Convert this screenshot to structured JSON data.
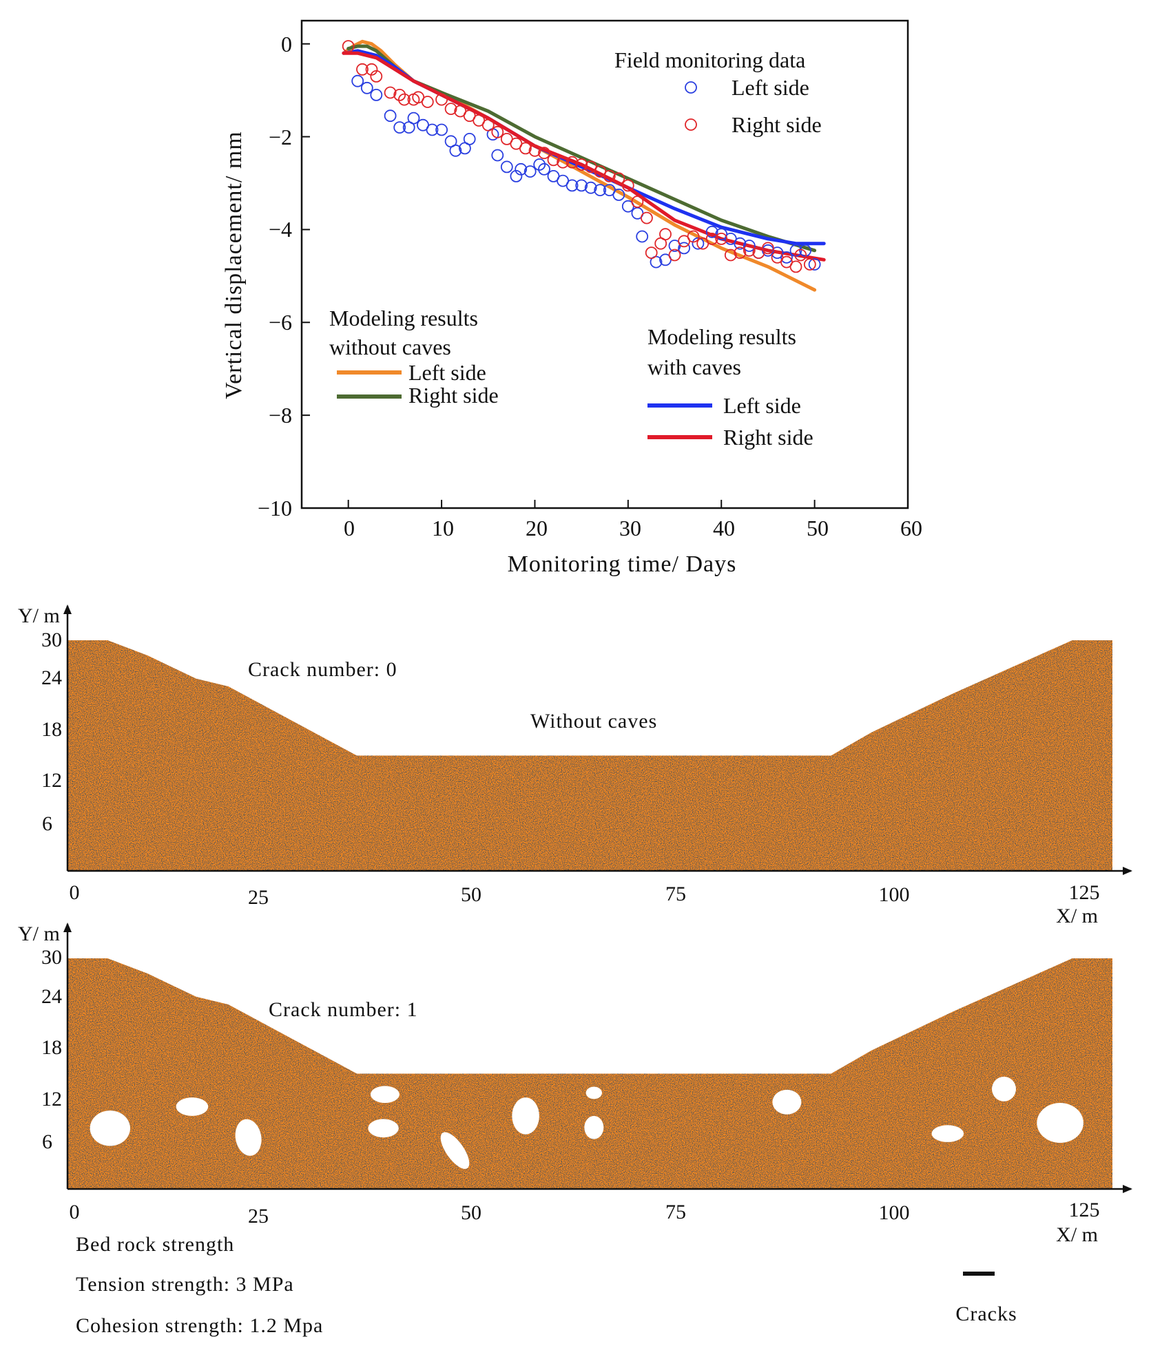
{
  "chart_data": [
    {
      "type": "line",
      "title": "",
      "xlabel": "Monitoring time/ Days",
      "ylabel": "Vertical displacement/ mm",
      "xlim": [
        -5,
        60
      ],
      "ylim": [
        -10,
        0.5
      ],
      "x_ticks": [
        "0",
        "10",
        "20",
        "30",
        "40",
        "50",
        "60"
      ],
      "y_ticks": [
        "0",
        "−2",
        "−4",
        "−6",
        "−8",
        "−10"
      ],
      "grid": false,
      "legend_groups": [
        {
          "title": "Field monitoring data",
          "entries": [
            "Left side",
            "Right side"
          ]
        },
        {
          "title_lines": [
            "Modeling results",
            "without caves"
          ],
          "entries": [
            "Left side",
            "Right side"
          ]
        },
        {
          "title_lines": [
            "Modeling results",
            "with caves"
          ],
          "entries": [
            "Left side",
            "Right side"
          ]
        }
      ],
      "series": [
        {
          "name": "Field monitoring data - Left side",
          "kind": "scatter",
          "color": "#2a3fe0",
          "points": [
            [
              1,
              -0.8
            ],
            [
              2,
              -0.95
            ],
            [
              3,
              -1.1
            ],
            [
              4.5,
              -1.55
            ],
            [
              5.5,
              -1.8
            ],
            [
              6.5,
              -1.8
            ],
            [
              7,
              -1.6
            ],
            [
              8,
              -1.75
            ],
            [
              9,
              -1.85
            ],
            [
              10,
              -1.85
            ],
            [
              11,
              -2.1
            ],
            [
              11.5,
              -2.3
            ],
            [
              12.5,
              -2.25
            ],
            [
              13,
              -2.05
            ],
            [
              15.5,
              -1.95
            ],
            [
              16,
              -2.4
            ],
            [
              17,
              -2.65
            ],
            [
              18,
              -2.85
            ],
            [
              18.5,
              -2.7
            ],
            [
              19.5,
              -2.75
            ],
            [
              20.5,
              -2.6
            ],
            [
              21,
              -2.7
            ],
            [
              22,
              -2.85
            ],
            [
              23,
              -2.95
            ],
            [
              24,
              -3.05
            ],
            [
              25,
              -3.05
            ],
            [
              26,
              -3.1
            ],
            [
              27,
              -3.15
            ],
            [
              28,
              -3.15
            ],
            [
              29,
              -3.25
            ],
            [
              30,
              -3.5
            ],
            [
              31,
              -3.65
            ],
            [
              31.5,
              -4.15
            ],
            [
              33,
              -4.7
            ],
            [
              34,
              -4.65
            ],
            [
              35,
              -4.35
            ],
            [
              36,
              -4.4
            ],
            [
              37.5,
              -4.3
            ],
            [
              39,
              -4.05
            ],
            [
              40,
              -4.1
            ],
            [
              41,
              -4.2
            ],
            [
              42,
              -4.3
            ],
            [
              43,
              -4.35
            ],
            [
              44,
              -4.5
            ],
            [
              45,
              -4.45
            ],
            [
              46,
              -4.5
            ],
            [
              47,
              -4.6
            ],
            [
              48,
              -4.45
            ],
            [
              49,
              -4.45
            ],
            [
              50,
              -4.75
            ]
          ]
        },
        {
          "name": "Field monitoring data - Right side",
          "kind": "scatter",
          "color": "#e0262a",
          "points": [
            [
              0,
              -0.05
            ],
            [
              1.5,
              -0.55
            ],
            [
              2.5,
              -0.55
            ],
            [
              3,
              -0.7
            ],
            [
              4.5,
              -1.05
            ],
            [
              5.5,
              -1.1
            ],
            [
              6,
              -1.2
            ],
            [
              7,
              -1.2
            ],
            [
              7.5,
              -1.15
            ],
            [
              8.5,
              -1.25
            ],
            [
              10,
              -1.2
            ],
            [
              11,
              -1.4
            ],
            [
              12,
              -1.45
            ],
            [
              13,
              -1.55
            ],
            [
              14,
              -1.65
            ],
            [
              15,
              -1.75
            ],
            [
              16,
              -1.9
            ],
            [
              17,
              -2.05
            ],
            [
              18,
              -2.15
            ],
            [
              19,
              -2.25
            ],
            [
              20,
              -2.3
            ],
            [
              21,
              -2.35
            ],
            [
              22,
              -2.5
            ],
            [
              23,
              -2.55
            ],
            [
              24,
              -2.55
            ],
            [
              25,
              -2.6
            ],
            [
              26,
              -2.65
            ],
            [
              27,
              -2.75
            ],
            [
              28,
              -2.85
            ],
            [
              29,
              -2.9
            ],
            [
              30,
              -3.05
            ],
            [
              31,
              -3.4
            ],
            [
              32,
              -3.75
            ],
            [
              32.5,
              -4.5
            ],
            [
              33.5,
              -4.3
            ],
            [
              34,
              -4.1
            ],
            [
              35,
              -4.55
            ],
            [
              36,
              -4.25
            ],
            [
              37,
              -4.15
            ],
            [
              38,
              -4.3
            ],
            [
              39,
              -4.2
            ],
            [
              40,
              -4.2
            ],
            [
              41,
              -4.55
            ],
            [
              42,
              -4.5
            ],
            [
              43,
              -4.45
            ],
            [
              44,
              -4.5
            ],
            [
              45,
              -4.4
            ],
            [
              46,
              -4.6
            ],
            [
              47,
              -4.7
            ],
            [
              48,
              -4.8
            ],
            [
              48.5,
              -4.55
            ],
            [
              49.5,
              -4.75
            ]
          ]
        },
        {
          "name": "Modeling results without caves - Left side",
          "kind": "line",
          "color": "#f0892a",
          "points": [
            [
              -0.5,
              -0.2
            ],
            [
              0.5,
              -0.05
            ],
            [
              1.5,
              0.05
            ],
            [
              2.5,
              0
            ],
            [
              3.5,
              -0.15
            ],
            [
              5,
              -0.45
            ],
            [
              7,
              -0.8
            ],
            [
              10,
              -1.05
            ],
            [
              15,
              -1.6
            ],
            [
              20,
              -2.2
            ],
            [
              25,
              -2.75
            ],
            [
              30,
              -3.3
            ],
            [
              35,
              -3.9
            ],
            [
              40,
              -4.4
            ],
            [
              45,
              -4.8
            ],
            [
              50,
              -5.3
            ]
          ]
        },
        {
          "name": "Modeling results without caves - Right side",
          "kind": "line",
          "color": "#4d6b32",
          "points": [
            [
              0,
              -0.1
            ],
            [
              1,
              -0.05
            ],
            [
              2,
              -0.05
            ],
            [
              3,
              -0.15
            ],
            [
              5,
              -0.5
            ],
            [
              7,
              -0.8
            ],
            [
              10,
              -1.05
            ],
            [
              15,
              -1.45
            ],
            [
              20,
              -2
            ],
            [
              25,
              -2.45
            ],
            [
              30,
              -2.9
            ],
            [
              35,
              -3.35
            ],
            [
              40,
              -3.8
            ],
            [
              45,
              -4.15
            ],
            [
              50,
              -4.45
            ]
          ]
        },
        {
          "name": "Modeling results with caves - Left side",
          "kind": "line",
          "color": "#1e32f0",
          "points": [
            [
              -0.5,
              -0.2
            ],
            [
              1,
              -0.15
            ],
            [
              3,
              -0.25
            ],
            [
              5,
              -0.5
            ],
            [
              7,
              -0.8
            ],
            [
              10,
              -1.1
            ],
            [
              15,
              -1.6
            ],
            [
              20,
              -2.2
            ],
            [
              25,
              -2.65
            ],
            [
              30,
              -3.1
            ],
            [
              35,
              -3.55
            ],
            [
              40,
              -3.95
            ],
            [
              45,
              -4.2
            ],
            [
              48,
              -4.3
            ],
            [
              51,
              -4.3
            ]
          ]
        },
        {
          "name": "Modeling results with caves - Right side",
          "kind": "line",
          "color": "#e01a2a",
          "points": [
            [
              -0.5,
              -0.2
            ],
            [
              1,
              -0.2
            ],
            [
              3,
              -0.3
            ],
            [
              5,
              -0.55
            ],
            [
              7,
              -0.8
            ],
            [
              10,
              -1.1
            ],
            [
              15,
              -1.6
            ],
            [
              20,
              -2.2
            ],
            [
              25,
              -2.6
            ],
            [
              30,
              -3.1
            ],
            [
              35,
              -3.8
            ],
            [
              40,
              -4.2
            ],
            [
              45,
              -4.45
            ],
            [
              51,
              -4.65
            ]
          ]
        }
      ]
    },
    {
      "type": "profile",
      "title": "Without caves",
      "annotation": "Crack number: 0",
      "xlabel": "X/ m",
      "ylabel": "Y/ m",
      "xlim": [
        0,
        130
      ],
      "ylim": [
        0,
        30
      ],
      "x_ticks": [
        "0",
        "25",
        "50",
        "75",
        "100",
        "125"
      ],
      "y_ticks": [
        "30",
        "24",
        "18",
        "12",
        "6"
      ],
      "surface": [
        [
          0,
          30
        ],
        [
          5,
          30
        ],
        [
          10,
          28
        ],
        [
          16,
          25
        ],
        [
          20,
          24
        ],
        [
          36,
          15
        ],
        [
          50,
          15
        ],
        [
          75,
          15
        ],
        [
          95,
          15
        ],
        [
          100,
          18
        ],
        [
          110,
          23
        ],
        [
          125,
          30
        ],
        [
          130,
          30
        ]
      ],
      "material_color": "#f4891f",
      "caves": []
    },
    {
      "type": "profile",
      "title": "",
      "annotation": "Crack number: 1",
      "xlabel": "X/ m",
      "ylabel": "Y/ m",
      "xlim": [
        0,
        130
      ],
      "ylim": [
        0,
        30
      ],
      "x_ticks": [
        "0",
        "25",
        "50",
        "75",
        "100",
        "125"
      ],
      "y_ticks": [
        "30",
        "24",
        "18",
        "12",
        "6"
      ],
      "surface": [
        [
          0,
          30
        ],
        [
          5,
          30
        ],
        [
          10,
          28
        ],
        [
          16,
          25
        ],
        [
          20,
          24
        ],
        [
          36,
          15
        ],
        [
          50,
          15
        ],
        [
          75,
          15
        ],
        [
          95,
          15
        ],
        [
          100,
          18
        ],
        [
          110,
          23
        ],
        [
          125,
          30
        ],
        [
          130,
          30
        ]
      ],
      "material_color": "#f4891f",
      "caves": [
        {
          "cx": 5.3,
          "cy": 7.9,
          "rx": 2.5,
          "ry": 2.3,
          "rot": 0
        },
        {
          "cx": 15.5,
          "cy": 10.7,
          "rx": 2,
          "ry": 1.2,
          "rot": 0
        },
        {
          "cx": 22.5,
          "cy": 6.7,
          "rx": 1.6,
          "ry": 2.4,
          "rot": -10
        },
        {
          "cx": 39.5,
          "cy": 12.3,
          "rx": 1.8,
          "ry": 1.1,
          "rot": 0
        },
        {
          "cx": 39.3,
          "cy": 7.9,
          "rx": 1.9,
          "ry": 1.2,
          "rot": 0
        },
        {
          "cx": 48.2,
          "cy": 5,
          "rx": 1.1,
          "ry": 2.8,
          "rot": -35
        },
        {
          "cx": 57,
          "cy": 9.5,
          "rx": 1.7,
          "ry": 2.4,
          "rot": 0
        },
        {
          "cx": 65.5,
          "cy": 12.5,
          "rx": 1,
          "ry": 0.8,
          "rot": 0
        },
        {
          "cx": 65.5,
          "cy": 8,
          "rx": 1.2,
          "ry": 1.5,
          "rot": 0
        },
        {
          "cx": 89.5,
          "cy": 11.3,
          "rx": 1.8,
          "ry": 1.6,
          "rot": 0
        },
        {
          "cx": 109.5,
          "cy": 7.2,
          "rx": 2,
          "ry": 1.1,
          "rot": 0
        },
        {
          "cx": 116.5,
          "cy": 13,
          "rx": 1.5,
          "ry": 1.6,
          "rot": 0
        },
        {
          "cx": 123.5,
          "cy": 8.6,
          "rx": 2.9,
          "ry": 2.6,
          "rot": 0
        }
      ]
    }
  ],
  "notes": {
    "heading": "Bed rock strength",
    "tension": "Tension strength: 3 MPa",
    "cohesion": "Cohesion strength: 1.2 Mpa",
    "cracks_legend": "Cracks"
  }
}
